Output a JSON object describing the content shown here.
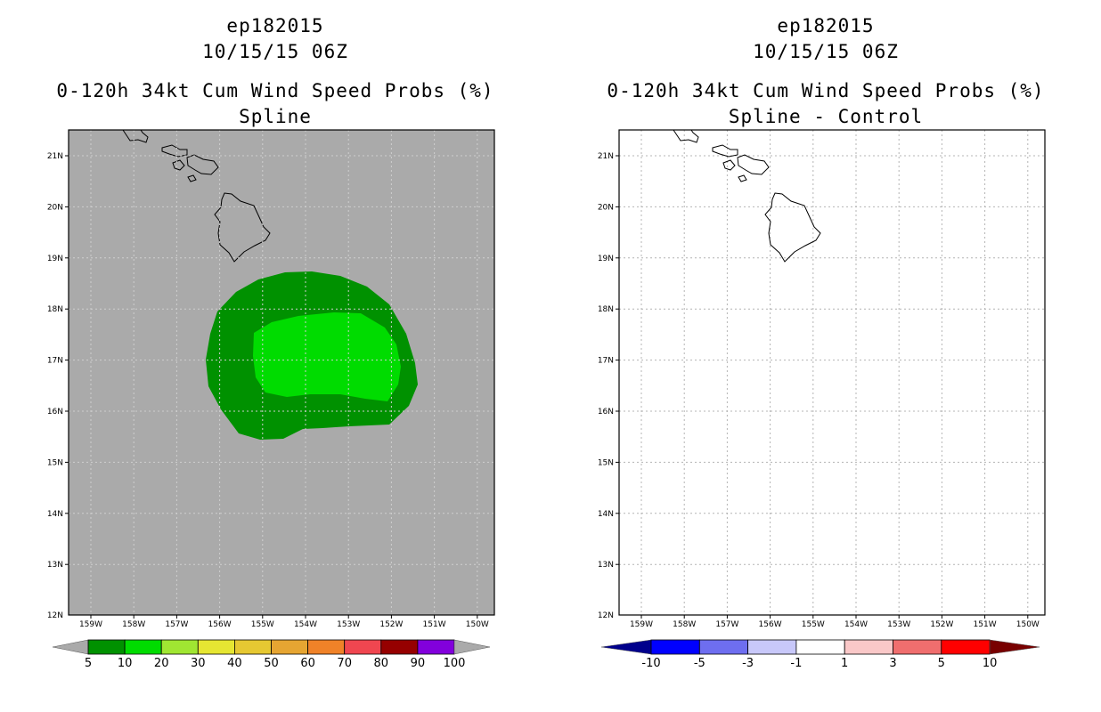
{
  "left_panel": {
    "title_storm": "ep182015",
    "title_time": "10/15/15 06Z",
    "title_product": "0-120h 34kt Cum Wind Speed Probs (%)",
    "title_method": "Spline",
    "background_color": "#aaaaaa",
    "colorbar": {
      "labels": [
        "5",
        "10",
        "20",
        "30",
        "40",
        "50",
        "60",
        "70",
        "80",
        "90",
        "100"
      ],
      "colors": [
        "#009100",
        "#00dc00",
        "#a0e632",
        "#e6e632",
        "#e6c832",
        "#e6a532",
        "#f08228",
        "#f04650",
        "#960000",
        "#8200dc"
      ],
      "under_color": "#aaaaaa",
      "over_color": "#aaaaaa"
    },
    "probability_contours": [
      {
        "level": 5,
        "color": "#009100"
      },
      {
        "level": 10,
        "color": "#00dc00"
      }
    ]
  },
  "right_panel": {
    "title_storm": "ep182015",
    "title_time": "10/15/15 06Z",
    "title_product": "0-120h 34kt Cum Wind Speed Probs (%)",
    "title_method": "Spline - Control",
    "background_color": "#ffffff",
    "colorbar": {
      "labels": [
        "-10",
        "-5",
        "-3",
        "-1",
        "1",
        "3",
        "5",
        "10"
      ],
      "colors": [
        "#0000ff",
        "#6e6ef0",
        "#c8c8fa",
        "#ffffff",
        "#fac8c8",
        "#f06e6e",
        "#ff0000"
      ],
      "under_color": "#00008c",
      "over_color": "#780000"
    }
  },
  "axes": {
    "lat_labels": [
      "21N",
      "20N",
      "19N",
      "18N",
      "17N",
      "16N",
      "15N",
      "14N",
      "13N",
      "12N"
    ],
    "lon_labels": [
      "159W",
      "158W",
      "157W",
      "156W",
      "155W",
      "154W",
      "153W",
      "152W",
      "151W",
      "150W"
    ]
  }
}
